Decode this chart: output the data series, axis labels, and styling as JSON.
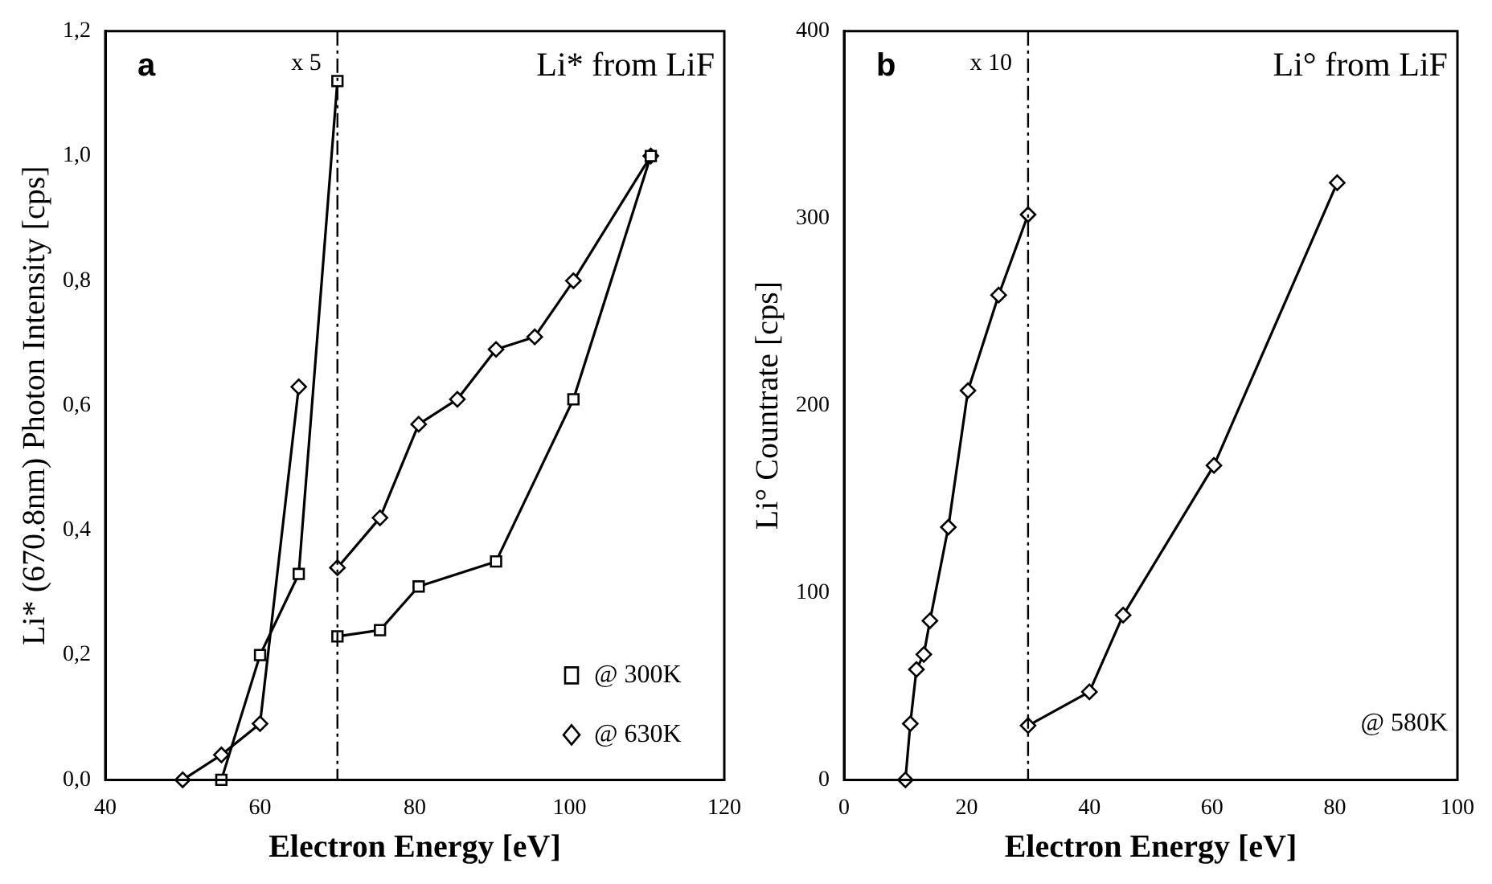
{
  "chart_data": [
    {
      "type": "line",
      "xlabel": "Electron Energy [eV]",
      "ylabel": "Li* (670.8nm) Photon Intensity [cps]",
      "xlim": [
        40,
        120
      ],
      "xticks": [
        40,
        60,
        80,
        100,
        120
      ],
      "ylim": [
        0,
        1.2
      ],
      "yticks": [
        {
          "value": 0,
          "label": "0,0"
        },
        {
          "value": 0.2,
          "label": "0,2"
        },
        {
          "value": 0.4,
          "label": "0,4"
        },
        {
          "value": 0.6,
          "label": "0,6"
        },
        {
          "value": 0.8,
          "label": "0,8"
        },
        {
          "value": 1.0,
          "label": "1,0"
        },
        {
          "value": 1.2,
          "label": "1,2"
        }
      ],
      "series": [
        {
          "name": "@ 300K",
          "color": "#000000",
          "marker": "square",
          "x": [
            70,
            75.5,
            80.5,
            90.5,
            100.5,
            110.5
          ],
          "values": [
            0.23,
            0.24,
            0.31,
            0.35,
            0.61,
            1.0
          ]
        },
        {
          "name": "@ 630K",
          "color": "#000000",
          "marker": "diamond",
          "x": [
            70,
            75.5,
            80.5,
            85.5,
            90.5,
            95.5,
            100.5,
            110.5
          ],
          "values": [
            0.34,
            0.42,
            0.57,
            0.61,
            0.69,
            0.71,
            0.8,
            1.0
          ]
        },
        {
          "color": "#000000",
          "marker": "square",
          "x": [
            55,
            60,
            65,
            70
          ],
          "values": [
            0,
            0.2,
            0.33,
            1.12
          ]
        },
        {
          "color": "#000000",
          "marker": "diamond",
          "x": [
            50,
            55,
            60,
            65
          ],
          "values": [
            0,
            0.04,
            0.09,
            0.63
          ]
        }
      ],
      "ref_lines": [
        {
          "axis": "x",
          "value": 70,
          "color": "#000000",
          "line_style": "dashed"
        }
      ],
      "annotations": [
        "a",
        "x 5",
        "Li* from LiF"
      ],
      "legend": "bottom right",
      "grid": false
    },
    {
      "type": "line",
      "xlabel": "Electron Energy [eV]",
      "ylabel": "Li° Countrate [cps]",
      "xlim": [
        0,
        100
      ],
      "xticks": [
        0,
        20,
        40,
        60,
        80,
        100
      ],
      "ylim": [
        0,
        400
      ],
      "yticks": [
        0,
        100,
        200,
        300,
        400
      ],
      "series": [
        {
          "color": "#000000",
          "marker": "diamond",
          "x": [
            10,
            10.8,
            11.8,
            13,
            14,
            17,
            20.2,
            25.2,
            30
          ],
          "values": [
            0,
            30,
            59,
            67,
            85,
            135,
            208,
            259,
            302
          ]
        },
        {
          "color": "#000000",
          "marker": "diamond",
          "x": [
            30,
            40,
            45.5,
            60.3,
            80.4
          ],
          "values": [
            29,
            47,
            88,
            168,
            319
          ]
        }
      ],
      "ref_lines": [
        {
          "axis": "x",
          "value": 30,
          "color": "#000000",
          "line_style": "dashed"
        }
      ],
      "annotations": [
        "b",
        "x 10",
        "Li° from LiF",
        "@ 580K"
      ],
      "legend": false,
      "grid": false
    }
  ]
}
